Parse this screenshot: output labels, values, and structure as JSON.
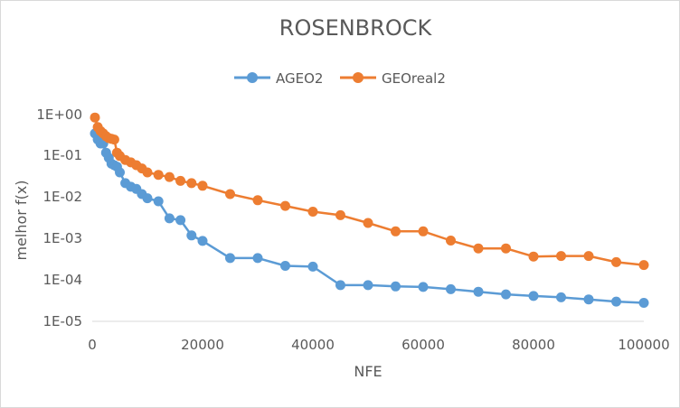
{
  "chart_data": {
    "type": "line",
    "title": "ROSENBROCK",
    "xlabel": "NFE",
    "ylabel": "melhor f(x)",
    "xlim": [
      0,
      100000
    ],
    "ylim": [
      1e-05,
      1
    ],
    "yscale": "log",
    "grid": false,
    "legend_position": "top",
    "x_tick_labels": [
      "0",
      "20000",
      "40000",
      "60000",
      "80000",
      "100000"
    ],
    "y_tick_labels": [
      "1E-05",
      "1E-04",
      "1E-03",
      "1E-02",
      "1E-01",
      "1E+00"
    ],
    "series": [
      {
        "name": "AGEO2",
        "color": "#5b9bd5",
        "points": [
          [
            500,
            0.35
          ],
          [
            1000,
            0.25
          ],
          [
            1500,
            0.2
          ],
          [
            2000,
            0.2
          ],
          [
            2500,
            0.12
          ],
          [
            3000,
            0.09
          ],
          [
            3500,
            0.065
          ],
          [
            4000,
            0.06
          ],
          [
            4500,
            0.055
          ],
          [
            5000,
            0.04
          ],
          [
            6000,
            0.022
          ],
          [
            7000,
            0.018
          ],
          [
            8000,
            0.016
          ],
          [
            9000,
            0.012
          ],
          [
            10000,
            0.0095
          ],
          [
            12000,
            0.008
          ],
          [
            14000,
            0.0031
          ],
          [
            16000,
            0.0028
          ],
          [
            18000,
            0.0012
          ],
          [
            20000,
            0.00088
          ],
          [
            25000,
            0.00034
          ],
          [
            30000,
            0.00034
          ],
          [
            35000,
            0.00022
          ],
          [
            40000,
            0.00021
          ],
          [
            45000,
            7.5e-05
          ],
          [
            50000,
            7.5e-05
          ],
          [
            55000,
            7e-05
          ],
          [
            60000,
            6.8e-05
          ],
          [
            65000,
            6e-05
          ],
          [
            70000,
            5.2e-05
          ],
          [
            75000,
            4.5e-05
          ],
          [
            80000,
            4.1e-05
          ],
          [
            85000,
            3.8e-05
          ],
          [
            90000,
            3.4e-05
          ],
          [
            95000,
            3e-05
          ],
          [
            100000,
            2.8e-05
          ]
        ]
      },
      {
        "name": "GEOreal2",
        "color": "#ed7d31",
        "points": [
          [
            500,
            0.85
          ],
          [
            1000,
            0.5
          ],
          [
            1500,
            0.4
          ],
          [
            2000,
            0.35
          ],
          [
            2500,
            0.3
          ],
          [
            3000,
            0.27
          ],
          [
            3500,
            0.26
          ],
          [
            4000,
            0.25
          ],
          [
            4500,
            0.12
          ],
          [
            5000,
            0.1
          ],
          [
            6000,
            0.08
          ],
          [
            7000,
            0.07
          ],
          [
            8000,
            0.06
          ],
          [
            9000,
            0.05
          ],
          [
            10000,
            0.04
          ],
          [
            12000,
            0.035
          ],
          [
            14000,
            0.031
          ],
          [
            16000,
            0.025
          ],
          [
            18000,
            0.022
          ],
          [
            20000,
            0.019
          ],
          [
            25000,
            0.012
          ],
          [
            30000,
            0.0085
          ],
          [
            35000,
            0.0062
          ],
          [
            40000,
            0.0045
          ],
          [
            45000,
            0.0037
          ],
          [
            50000,
            0.0024
          ],
          [
            55000,
            0.0015
          ],
          [
            60000,
            0.0015
          ],
          [
            65000,
            0.0009
          ],
          [
            70000,
            0.00058
          ],
          [
            75000,
            0.00058
          ],
          [
            80000,
            0.00037
          ],
          [
            85000,
            0.00038
          ],
          [
            90000,
            0.00038
          ],
          [
            95000,
            0.00027
          ],
          [
            100000,
            0.00023
          ]
        ]
      }
    ]
  }
}
